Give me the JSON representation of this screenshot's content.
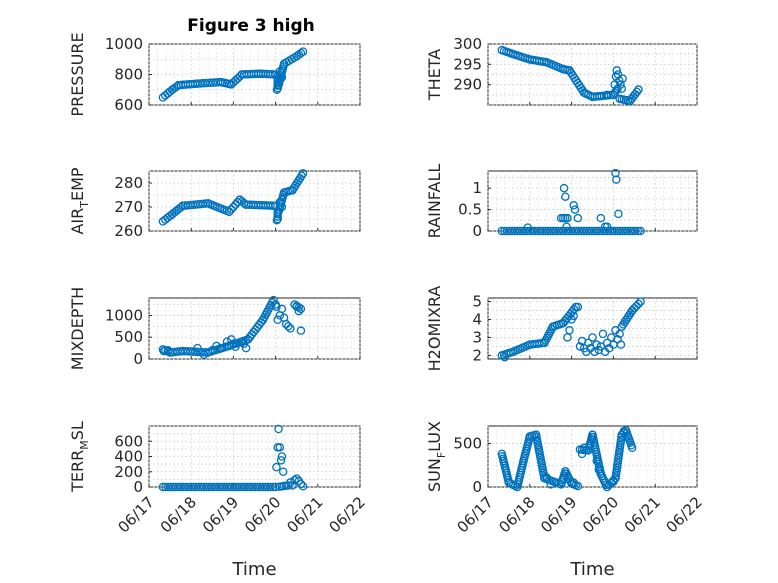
{
  "figure_title": "Figure 3 high",
  "marker_color": "#0072bd",
  "chart_data": [
    {
      "type": "scatter",
      "ylabel_main": "PRESSURE",
      "ylabel_sub": "",
      "ylabel_tail": "",
      "ylim": [
        600,
        1000
      ],
      "yticks": [
        600,
        800,
        1000
      ],
      "ytick_labels": [
        "600",
        "800",
        "1000"
      ],
      "xlim": [
        0,
        5
      ],
      "xticks": [
        0,
        1,
        2,
        3,
        4,
        5
      ],
      "xlabel": "",
      "xtick_labels": [],
      "segments": [
        [
          0.33,
          650,
          0.55,
          700
        ],
        [
          0.55,
          700,
          0.7,
          730
        ],
        [
          0.7,
          730,
          1.15,
          740
        ],
        [
          1.15,
          740,
          1.7,
          750
        ],
        [
          1.7,
          750,
          1.95,
          735
        ],
        [
          1.95,
          735,
          2.2,
          800
        ],
        [
          2.2,
          800,
          2.65,
          805
        ],
        [
          2.65,
          805,
          3.0,
          800
        ],
        [
          3.05,
          790,
          3.05,
          710
        ],
        [
          3.07,
          730,
          3.2,
          870
        ],
        [
          3.2,
          870,
          3.5,
          920
        ],
        [
          3.5,
          920,
          3.65,
          950
        ]
      ],
      "points": [
        [
          3.03,
          700
        ],
        [
          3.1,
          820
        ],
        [
          3.15,
          780
        ]
      ]
    },
    {
      "type": "scatter",
      "ylabel_main": "THETA",
      "ylabel_sub": "",
      "ylabel_tail": "",
      "ylim": [
        285,
        300
      ],
      "yticks": [
        290,
        295,
        300
      ],
      "ytick_labels": [
        "290",
        "295",
        "300"
      ],
      "xlim": [
        0,
        5
      ],
      "xticks": [
        0,
        1,
        2,
        3,
        4,
        5
      ],
      "xlabel": "",
      "xtick_labels": [],
      "segments": [
        [
          0.33,
          298.5,
          0.6,
          297.5
        ],
        [
          0.6,
          297.5,
          1.0,
          296.2
        ],
        [
          1.0,
          296.2,
          1.4,
          295.5
        ],
        [
          1.4,
          295.5,
          1.8,
          293.8
        ],
        [
          1.8,
          293.8,
          1.95,
          293.5
        ],
        [
          1.95,
          293.5,
          2.3,
          288.0
        ],
        [
          2.3,
          288.0,
          2.5,
          287.0
        ],
        [
          2.5,
          287.0,
          3.0,
          287.5
        ],
        [
          3.0,
          287.5,
          3.1,
          289.0
        ],
        [
          3.15,
          286.5,
          3.4,
          286.0
        ],
        [
          3.4,
          286.0,
          3.6,
          288.8
        ]
      ],
      "points": [
        [
          3.03,
          290.0
        ],
        [
          3.06,
          292.0
        ],
        [
          3.08,
          293.5
        ],
        [
          3.11,
          292.5
        ],
        [
          3.14,
          291.0
        ],
        [
          3.17,
          290.0
        ],
        [
          3.2,
          289.0
        ],
        [
          3.22,
          291.5
        ],
        [
          2.85,
          287.5
        ]
      ]
    },
    {
      "type": "scatter",
      "ylabel_main": "AIR",
      "ylabel_sub": "T",
      "ylabel_tail": "EMP",
      "ylim": [
        260,
        285
      ],
      "yticks": [
        260,
        270,
        280
      ],
      "ytick_labels": [
        "260",
        "270",
        "280"
      ],
      "xlim": [
        0,
        5
      ],
      "xticks": [
        0,
        1,
        2,
        3,
        4,
        5
      ],
      "xlabel": "",
      "xtick_labels": [],
      "segments": [
        [
          0.33,
          264,
          0.55,
          267
        ],
        [
          0.55,
          267,
          0.8,
          270.5
        ],
        [
          0.8,
          270.5,
          1.4,
          271.5
        ],
        [
          1.4,
          271.5,
          1.9,
          268
        ],
        [
          1.9,
          268,
          2.15,
          273
        ],
        [
          2.15,
          273,
          2.3,
          271
        ],
        [
          2.3,
          271,
          3.0,
          270.5
        ],
        [
          3.05,
          268,
          3.05,
          265
        ],
        [
          3.07,
          268,
          3.2,
          276
        ],
        [
          3.2,
          276,
          3.4,
          277
        ],
        [
          3.4,
          277,
          3.65,
          284
        ]
      ],
      "points": [
        [
          3.03,
          264.5
        ],
        [
          3.1,
          272
        ],
        [
          3.15,
          270
        ]
      ]
    },
    {
      "type": "scatter",
      "ylabel_main": "RAINFALL",
      "ylabel_sub": "",
      "ylabel_tail": "",
      "ylim": [
        0,
        1.4
      ],
      "yticks": [
        0,
        0.5,
        1
      ],
      "ytick_labels": [
        "0",
        "0.5",
        "1"
      ],
      "xlim": [
        0,
        5
      ],
      "xticks": [
        0,
        1,
        2,
        3,
        4,
        5
      ],
      "xlabel": "",
      "xtick_labels": [],
      "segments": [
        [
          0.33,
          0,
          3.65,
          0
        ]
      ],
      "points": [
        [
          0.95,
          0.08
        ],
        [
          1.75,
          0.3
        ],
        [
          1.8,
          0.3
        ],
        [
          1.85,
          0.3
        ],
        [
          1.9,
          0.3
        ],
        [
          1.82,
          1.0
        ],
        [
          1.85,
          0.8
        ],
        [
          1.88,
          0.1
        ],
        [
          2.05,
          0.6
        ],
        [
          2.08,
          0.5
        ],
        [
          2.15,
          0.3
        ],
        [
          2.7,
          0.3
        ],
        [
          2.8,
          0.1
        ],
        [
          2.85,
          0.1
        ],
        [
          3.05,
          1.35
        ],
        [
          3.07,
          1.2
        ],
        [
          3.12,
          0.4
        ]
      ]
    },
    {
      "type": "scatter",
      "ylabel_main": "MIXDEPTH",
      "ylabel_sub": "",
      "ylabel_tail": "",
      "ylim": [
        0,
        1400
      ],
      "yticks": [
        0,
        500,
        1000
      ],
      "ytick_labels": [
        "0",
        "500",
        "1000"
      ],
      "xlim": [
        0,
        5
      ],
      "xticks": [
        0,
        1,
        2,
        3,
        4,
        5
      ],
      "xlabel": "",
      "xtick_labels": [],
      "segments": [
        [
          0.33,
          220,
          0.5,
          150
        ],
        [
          0.5,
          150,
          0.8,
          180
        ],
        [
          0.8,
          180,
          1.4,
          150
        ],
        [
          1.4,
          150,
          1.9,
          300
        ],
        [
          1.9,
          300,
          2.35,
          450
        ],
        [
          2.35,
          450,
          2.7,
          900
        ],
        [
          2.7,
          900,
          2.95,
          1350
        ],
        [
          3.45,
          1250,
          3.6,
          1150
        ]
      ],
      "points": [
        [
          0.35,
          180
        ],
        [
          0.45,
          200
        ],
        [
          1.15,
          250
        ],
        [
          1.3,
          100
        ],
        [
          1.5,
          200
        ],
        [
          1.6,
          300
        ],
        [
          1.7,
          250
        ],
        [
          1.85,
          400
        ],
        [
          1.95,
          450
        ],
        [
          2.0,
          350
        ],
        [
          2.05,
          280
        ],
        [
          2.2,
          400
        ],
        [
          2.25,
          350
        ],
        [
          2.3,
          250
        ],
        [
          3.0,
          1250
        ],
        [
          3.02,
          1200
        ],
        [
          3.05,
          900
        ],
        [
          3.1,
          1000
        ],
        [
          3.15,
          1150
        ],
        [
          3.2,
          950
        ],
        [
          3.25,
          800
        ],
        [
          3.3,
          750
        ],
        [
          3.35,
          700
        ],
        [
          3.5,
          1200
        ],
        [
          3.6,
          650
        ],
        [
          3.55,
          1100
        ]
      ]
    },
    {
      "type": "scatter",
      "ylabel_main": "H2OMIXRA",
      "ylabel_sub": "",
      "ylabel_tail": "",
      "ylim": [
        1.8,
        5.2
      ],
      "yticks": [
        2,
        3,
        4,
        5
      ],
      "ytick_labels": [
        "2",
        "3",
        "4",
        "5"
      ],
      "xlim": [
        0,
        5
      ],
      "xticks": [
        0,
        1,
        2,
        3,
        4,
        5
      ],
      "xlabel": "",
      "xtick_labels": [],
      "segments": [
        [
          0.33,
          2.0,
          0.6,
          2.2
        ],
        [
          0.6,
          2.2,
          1.0,
          2.6
        ],
        [
          1.0,
          2.6,
          1.35,
          2.7
        ],
        [
          1.35,
          2.7,
          1.55,
          3.6
        ],
        [
          1.55,
          3.6,
          1.8,
          3.8
        ],
        [
          1.8,
          3.8,
          2.1,
          4.7
        ],
        [
          3.2,
          3.6,
          3.45,
          4.5
        ],
        [
          3.45,
          4.5,
          3.65,
          5.0
        ]
      ],
      "points": [
        [
          0.4,
          1.9
        ],
        [
          1.9,
          3.0
        ],
        [
          1.95,
          3.4
        ],
        [
          2.0,
          4.0
        ],
        [
          2.05,
          4.2
        ],
        [
          2.15,
          4.7
        ],
        [
          2.2,
          2.5
        ],
        [
          2.25,
          2.8
        ],
        [
          2.3,
          2.4
        ],
        [
          2.35,
          2.2
        ],
        [
          2.4,
          2.7
        ],
        [
          2.45,
          2.4
        ],
        [
          2.5,
          3.0
        ],
        [
          2.55,
          2.2
        ],
        [
          2.6,
          2.6
        ],
        [
          2.65,
          2.3
        ],
        [
          2.7,
          2.5
        ],
        [
          2.75,
          3.2
        ],
        [
          2.8,
          2.2
        ],
        [
          2.85,
          2.7
        ],
        [
          2.9,
          2.4
        ],
        [
          2.95,
          3.0
        ],
        [
          3.0,
          2.6
        ],
        [
          3.05,
          3.4
        ],
        [
          3.1,
          2.9
        ],
        [
          3.15,
          3.2
        ],
        [
          3.18,
          2.6
        ]
      ]
    },
    {
      "type": "scatter",
      "ylabel_main": "TERR",
      "ylabel_sub": "M",
      "ylabel_tail": "SL",
      "ylim": [
        0,
        800
      ],
      "yticks": [
        0,
        200,
        400,
        600
      ],
      "ytick_labels": [
        "0",
        "200",
        "400",
        "600"
      ],
      "xlim": [
        0,
        5
      ],
      "xticks": [
        0,
        1,
        2,
        3,
        4,
        5
      ],
      "xlabel": "Time",
      "xtick_labels": [
        "06/17",
        "06/18",
        "06/19",
        "06/20",
        "06/21",
        "06/22"
      ],
      "segments": [
        [
          0.33,
          0,
          3.0,
          0
        ],
        [
          3.1,
          5,
          3.3,
          20
        ]
      ],
      "points": [
        [
          3.02,
          260
        ],
        [
          3.05,
          520
        ],
        [
          3.07,
          760
        ],
        [
          3.1,
          520
        ],
        [
          3.13,
          350
        ],
        [
          3.15,
          400
        ],
        [
          3.18,
          200
        ],
        [
          3.35,
          60
        ],
        [
          3.45,
          90
        ],
        [
          3.5,
          110
        ],
        [
          3.55,
          80
        ],
        [
          3.6,
          40
        ],
        [
          3.65,
          10
        ],
        [
          3.4,
          20
        ]
      ]
    },
    {
      "type": "scatter",
      "ylabel_main": "SUN",
      "ylabel_sub": "F",
      "ylabel_tail": "LUX",
      "ylim": [
        0,
        700
      ],
      "yticks": [
        0,
        500
      ],
      "ytick_labels": [
        "0",
        "500"
      ],
      "xlim": [
        0,
        5
      ],
      "xticks": [
        0,
        1,
        2,
        3,
        4,
        5
      ],
      "xlabel": "Time",
      "xtick_labels": [
        "06/17",
        "06/18",
        "06/19",
        "06/20",
        "06/21",
        "06/22"
      ],
      "segments": [
        [
          0.33,
          380,
          0.5,
          50
        ],
        [
          0.5,
          50,
          0.7,
          0
        ],
        [
          0.7,
          0,
          0.85,
          300
        ],
        [
          0.85,
          300,
          1.0,
          580
        ],
        [
          1.0,
          580,
          1.15,
          600
        ],
        [
          1.15,
          600,
          1.35,
          100
        ],
        [
          1.35,
          100,
          1.75,
          30
        ],
        [
          1.75,
          30,
          1.85,
          180
        ],
        [
          1.85,
          180,
          2.0,
          40
        ],
        [
          2.0,
          40,
          2.15,
          10
        ],
        [
          2.2,
          430,
          2.4,
          420
        ],
        [
          2.4,
          420,
          2.5,
          600
        ],
        [
          2.5,
          600,
          2.7,
          150
        ],
        [
          2.7,
          150,
          2.85,
          0
        ],
        [
          2.85,
          0,
          3.05,
          100
        ],
        [
          3.05,
          100,
          3.2,
          600
        ],
        [
          3.2,
          600,
          3.3,
          650
        ],
        [
          3.3,
          650,
          3.45,
          450
        ]
      ],
      "points": [
        [
          1.4,
          110
        ],
        [
          1.5,
          30
        ],
        [
          1.9,
          120
        ],
        [
          2.05,
          50
        ],
        [
          2.25,
          380
        ],
        [
          2.3,
          450
        ],
        [
          2.6,
          300
        ],
        [
          2.65,
          200
        ],
        [
          3.0,
          60
        ],
        [
          3.25,
          640
        ]
      ]
    }
  ]
}
